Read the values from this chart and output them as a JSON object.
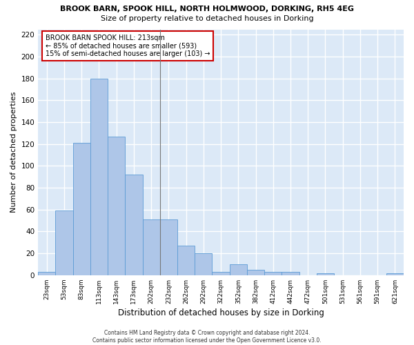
{
  "title": "BROOK BARN, SPOOK HILL, NORTH HOLMWOOD, DORKING, RH5 4EG",
  "subtitle": "Size of property relative to detached houses in Dorking",
  "xlabel": "Distribution of detached houses by size in Dorking",
  "ylabel": "Number of detached properties",
  "bin_labels": [
    "23sqm",
    "53sqm",
    "83sqm",
    "113sqm",
    "143sqm",
    "173sqm",
    "202sqm",
    "232sqm",
    "262sqm",
    "292sqm",
    "322sqm",
    "352sqm",
    "382sqm",
    "412sqm",
    "442sqm",
    "472sqm",
    "501sqm",
    "531sqm",
    "561sqm",
    "591sqm",
    "621sqm"
  ],
  "bar_values": [
    3,
    59,
    121,
    180,
    127,
    92,
    51,
    51,
    27,
    20,
    3,
    10,
    5,
    3,
    3,
    0,
    2,
    0,
    0,
    0,
    2
  ],
  "bar_color": "#aec6e8",
  "bar_edge_color": "#5b9bd5",
  "background_color": "#dce9f7",
  "grid_color": "#ffffff",
  "ylim": [
    0,
    225
  ],
  "yticks": [
    0,
    20,
    40,
    60,
    80,
    100,
    120,
    140,
    160,
    180,
    200,
    220
  ],
  "annotation_text": "BROOK BARN SPOOK HILL: 213sqm\n← 85% of detached houses are smaller (593)\n15% of semi-detached houses are larger (103) →",
  "annotation_box_color": "#ffffff",
  "annotation_box_edge_color": "#cc0000",
  "vline_x_index": 6,
  "footer_line1": "Contains HM Land Registry data © Crown copyright and database right 2024.",
  "footer_line2": "Contains public sector information licensed under the Open Government Licence v3.0."
}
